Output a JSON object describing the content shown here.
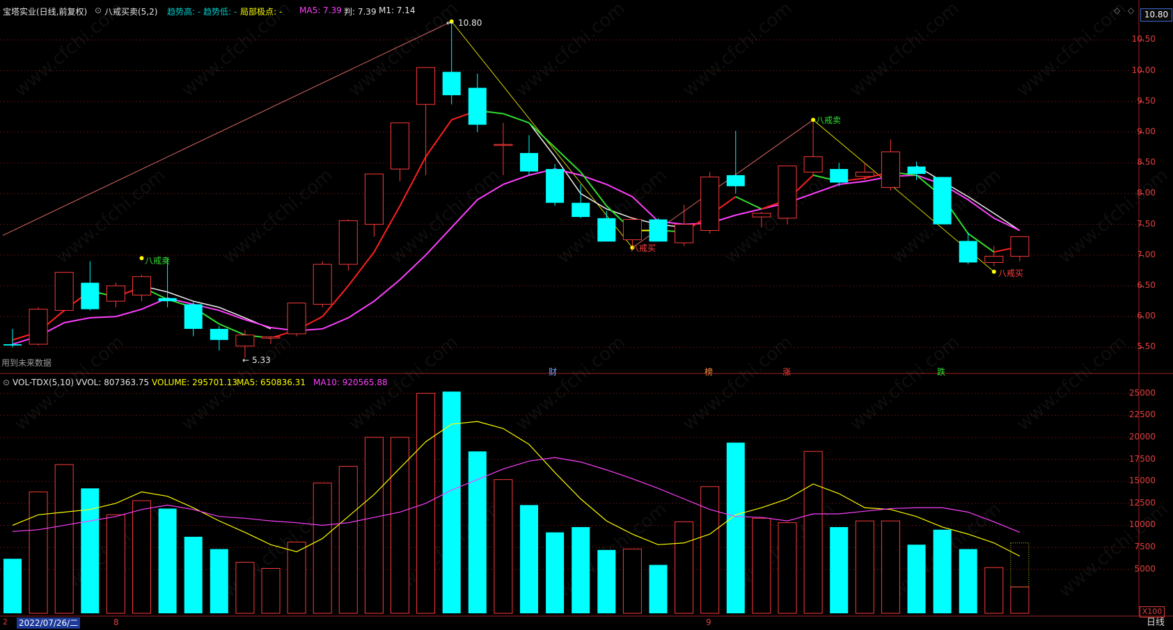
{
  "header": {
    "stock": "宝塔实业(日线,前复权)",
    "indicator": "八戒买卖(5,2)",
    "trend_high_label": "趋势高: -",
    "trend_low_label": "趋势低: -",
    "local_extreme_label": "局部极点: -",
    "ma5_label": "MA5: 7.39",
    "judge_label": "判: 7.39",
    "m1_label": "M1: 7.14",
    "m1_value": "7.14"
  },
  "current_price_tag": "10.80",
  "future_data_note": "用到未来数据",
  "price_axis": [
    "10.50",
    "10.00",
    "9.50",
    "9.00",
    "8.50",
    "8.00",
    "7.50",
    "7.00",
    "6.50",
    "6.00",
    "5.50"
  ],
  "vol_header": {
    "name": "VOL-TDX(5,10)",
    "vvol": "VVOL: 807363.75",
    "volume": "VOLUME: 295701.13",
    "ma5": "MA5: 650836.31",
    "ma10": "MA10: 920565.88"
  },
  "vol_axis": [
    "25000",
    "22500",
    "20000",
    "17500",
    "15000",
    "12500",
    "10000",
    "7500",
    "5000"
  ],
  "vol_unit": "X100",
  "date_label": "2022/07/26/二",
  "month_labels": [
    "8",
    "9"
  ],
  "period_button": "日线",
  "annotations": {
    "high_label": "10.80",
    "low_label": "5.33",
    "sell_1": "八戒卖",
    "sell_2": "八戒卖",
    "buy_1": "八戒买",
    "buy_2": "八戒买"
  },
  "events": [
    "财",
    "榜",
    "涨",
    "跌"
  ],
  "watermark": "www.cfchi.com",
  "colors": {
    "up": "#ff3a3a",
    "down": "#00ffff",
    "ma5": "#ffff00",
    "ma10": "#ff40ff",
    "axis": "#e04040"
  },
  "chart_data": {
    "type": "candlestick",
    "price_ylim": [
      5.2,
      10.9
    ],
    "volume_ylim": [
      0,
      26000
    ],
    "candles": [
      {
        "o": 5.55,
        "h": 5.8,
        "l": 5.5,
        "c": 5.53
      },
      {
        "o": 5.55,
        "h": 6.15,
        "l": 5.53,
        "c": 6.12
      },
      {
        "o": 6.1,
        "h": 6.72,
        "l": 6.08,
        "c": 6.72
      },
      {
        "o": 6.55,
        "h": 6.9,
        "l": 6.1,
        "c": 6.12
      },
      {
        "o": 6.25,
        "h": 6.55,
        "l": 6.15,
        "c": 6.5
      },
      {
        "o": 6.35,
        "h": 6.68,
        "l": 6.25,
        "c": 6.65
      },
      {
        "o": 6.3,
        "h": 6.95,
        "l": 6.15,
        "c": 6.25
      },
      {
        "o": 6.2,
        "h": 6.25,
        "l": 5.68,
        "c": 5.8
      },
      {
        "o": 5.8,
        "h": 5.85,
        "l": 5.45,
        "c": 5.62
      },
      {
        "o": 5.52,
        "h": 5.78,
        "l": 5.33,
        "c": 5.7
      },
      {
        "o": 5.65,
        "h": 5.68,
        "l": 5.55,
        "c": 5.67
      },
      {
        "o": 5.72,
        "h": 6.22,
        "l": 5.68,
        "c": 6.22
      },
      {
        "o": 6.2,
        "h": 6.9,
        "l": 6.15,
        "c": 6.85
      },
      {
        "o": 6.85,
        "h": 7.58,
        "l": 6.75,
        "c": 7.56
      },
      {
        "o": 7.5,
        "h": 8.32,
        "l": 7.3,
        "c": 8.32
      },
      {
        "o": 8.4,
        "h": 9.15,
        "l": 8.2,
        "c": 9.15
      },
      {
        "o": 9.45,
        "h": 10.05,
        "l": 8.3,
        "c": 10.05
      },
      {
        "o": 9.98,
        "h": 10.8,
        "l": 9.45,
        "c": 9.6
      },
      {
        "o": 9.72,
        "h": 9.95,
        "l": 9.0,
        "c": 9.12
      },
      {
        "o": 8.8,
        "h": 9.15,
        "l": 8.3,
        "c": 8.8
      },
      {
        "o": 8.66,
        "h": 8.95,
        "l": 8.3,
        "c": 8.36
      },
      {
        "o": 8.4,
        "h": 8.48,
        "l": 7.8,
        "c": 7.85
      },
      {
        "o": 7.85,
        "h": 8.15,
        "l": 7.6,
        "c": 7.62
      },
      {
        "o": 7.6,
        "h": 7.72,
        "l": 7.22,
        "c": 7.22
      },
      {
        "o": 7.25,
        "h": 7.62,
        "l": 7.12,
        "c": 7.58
      },
      {
        "o": 7.58,
        "h": 7.6,
        "l": 7.22,
        "c": 7.22
      },
      {
        "o": 7.2,
        "h": 7.82,
        "l": 7.15,
        "c": 7.5
      },
      {
        "o": 7.4,
        "h": 8.35,
        "l": 7.35,
        "c": 8.27
      },
      {
        "o": 8.3,
        "h": 9.02,
        "l": 8.0,
        "c": 8.12
      },
      {
        "o": 7.62,
        "h": 7.7,
        "l": 7.45,
        "c": 7.68
      },
      {
        "o": 7.6,
        "h": 8.45,
        "l": 7.5,
        "c": 8.45
      },
      {
        "o": 8.35,
        "h": 9.22,
        "l": 8.3,
        "c": 8.6
      },
      {
        "o": 8.4,
        "h": 8.5,
        "l": 8.12,
        "c": 8.18
      },
      {
        "o": 8.28,
        "h": 8.5,
        "l": 8.22,
        "c": 8.35
      },
      {
        "o": 8.1,
        "h": 8.88,
        "l": 8.05,
        "c": 8.68
      },
      {
        "o": 8.44,
        "h": 8.52,
        "l": 8.22,
        "c": 8.32
      },
      {
        "o": 8.27,
        "h": 8.27,
        "l": 7.5,
        "c": 7.5
      },
      {
        "o": 7.23,
        "h": 7.37,
        "l": 6.85,
        "c": 6.88
      },
      {
        "o": 6.88,
        "h": 7.15,
        "l": 6.82,
        "c": 6.98
      },
      {
        "o": 6.98,
        "h": 7.3,
        "l": 6.9,
        "c": 7.3
      }
    ],
    "volume": [
      6200,
      13800,
      16900,
      14200,
      11200,
      12800,
      11900,
      8700,
      7300,
      5800,
      5100,
      8100,
      14800,
      16700,
      20000,
      20000,
      25000,
      25200,
      18400,
      15200,
      12300,
      9200,
      9800,
      7200,
      7300,
      5500,
      10400,
      14400,
      19400,
      10800,
      10300,
      18400,
      9800,
      10500,
      10500,
      7800,
      9500,
      7300,
      5200,
      3000
    ],
    "ma5_price": [
      5.62,
      5.75,
      6.1,
      6.42,
      6.32,
      6.48,
      6.28,
      6.15,
      5.88,
      5.7,
      5.65,
      5.78,
      6.0,
      6.5,
      7.05,
      7.8,
      8.6,
      9.2,
      9.35,
      9.3,
      9.15,
      8.75,
      8.35,
      7.8,
      7.4,
      7.4,
      7.38,
      7.65,
      7.95,
      7.75,
      7.9,
      8.3,
      8.2,
      8.25,
      8.35,
      8.3,
      7.95,
      7.35,
      7.05,
      7.14
    ],
    "ma10_price": [
      5.55,
      5.68,
      5.9,
      5.98,
      6.0,
      6.12,
      6.3,
      6.2,
      6.1,
      5.95,
      5.82,
      5.77,
      5.8,
      5.98,
      6.25,
      6.6,
      7.0,
      7.45,
      7.9,
      8.15,
      8.3,
      8.4,
      8.3,
      8.15,
      7.95,
      7.55,
      7.5,
      7.52,
      7.65,
      7.75,
      7.85,
      8.0,
      8.15,
      8.2,
      8.28,
      8.3,
      8.15,
      7.9,
      7.6,
      7.4
    ],
    "vol_ma5": [
      10000,
      11200,
      11500,
      11800,
      12500,
      13800,
      13300,
      12000,
      10500,
      9200,
      7800,
      7000,
      8500,
      11000,
      13500,
      16500,
      19500,
      21500,
      21800,
      21000,
      19200,
      16000,
      13000,
      10500,
      9000,
      7800,
      8000,
      9000,
      11200,
      12000,
      13000,
      14700,
      13600,
      12000,
      11800,
      11000,
      9800,
      9000,
      8000,
      6500
    ],
    "vol_ma10": [
      9300,
      9500,
      10000,
      10500,
      11000,
      11800,
      12300,
      11800,
      11000,
      10800,
      10500,
      10300,
      10000,
      10300,
      10900,
      11500,
      12500,
      14000,
      15200,
      16400,
      17300,
      17700,
      17200,
      16300,
      15300,
      14200,
      13000,
      11800,
      11000,
      10900,
      10500,
      11300,
      11300,
      11600,
      11900,
      12000,
      12000,
      11500,
      10400,
      9200
    ]
  }
}
